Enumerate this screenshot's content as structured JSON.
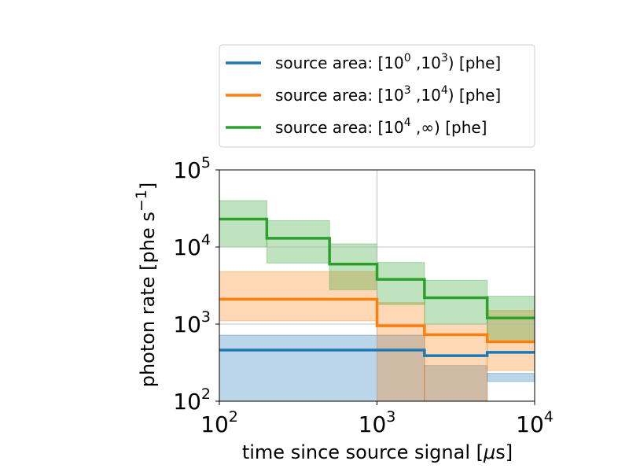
{
  "chart_data": {
    "type": "area",
    "x_scale": "log",
    "y_scale": "log",
    "xlim": [
      100,
      10000
    ],
    "ylim": [
      100,
      100000
    ],
    "xlabel_parts": {
      "pre": "time since source signal [",
      "greek": "μ",
      "post": "s]"
    },
    "ylabel_parts": {
      "pre": "photon rate [phe s",
      "sup": "−1",
      "post": "]"
    },
    "x_ticks": [
      {
        "base": "10",
        "exp": "2"
      },
      {
        "base": "10",
        "exp": "3"
      },
      {
        "base": "10",
        "exp": "4"
      }
    ],
    "y_ticks": [
      {
        "base": "10",
        "exp": "2"
      },
      {
        "base": "10",
        "exp": "3"
      },
      {
        "base": "10",
        "exp": "4"
      },
      {
        "base": "10",
        "exp": "5"
      }
    ],
    "grid": true,
    "legend_position": "above",
    "legend": [
      {
        "pre": "source area: [10",
        "sup1": "0",
        "mid": " ,10",
        "sup2": "3",
        "post": ") [phe]"
      },
      {
        "pre": "source area: [10",
        "sup1": "3",
        "mid": " ,10",
        "sup2": "4",
        "post": ") [phe]"
      },
      {
        "pre": "source area: [10",
        "sup1": "4",
        "mid": " ,∞) [phe]",
        "sup2": "",
        "post": ""
      }
    ],
    "series": [
      {
        "color": "#1f77b4",
        "fill_color": "#1f77b4",
        "edges": [
          100,
          1000,
          2000,
          5000,
          10000
        ],
        "values": [
          460,
          460,
          390,
          430
        ],
        "lower": [
          100,
          100,
          100,
          180
        ],
        "upper": [
          720,
          720,
          290,
          230
        ]
      },
      {
        "color": "#ff7f0e",
        "fill_color": "#ff7f0e",
        "edges": [
          100,
          1000,
          2000,
          5000,
          10000
        ],
        "values": [
          2100,
          950,
          730,
          590
        ],
        "lower": [
          1100,
          100,
          100,
          250
        ],
        "upper": [
          4800,
          1900,
          1000,
          1500
        ]
      },
      {
        "color": "#2ca02c",
        "fill_color": "#2ca02c",
        "edges": [
          100,
          200,
          500,
          1000,
          2000,
          5000,
          10000
        ],
        "values": [
          23000,
          13000,
          6000,
          3800,
          2200,
          1200,
          1200
        ],
        "lower": [
          10000,
          6200,
          2800,
          1800,
          1000,
          600,
          600
        ],
        "upper": [
          40000,
          22000,
          11000,
          6300,
          3700,
          2300,
          2300
        ]
      }
    ]
  }
}
